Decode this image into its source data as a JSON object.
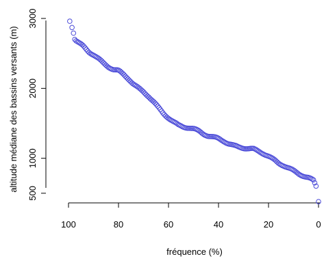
{
  "chart_data": {
    "type": "scatter",
    "title": "",
    "xlabel": "fréquence (%)",
    "ylabel": "altitude médiane des bassins versants (m)",
    "xlim": [
      100,
      0
    ],
    "ylim": [
      450,
      3000
    ],
    "xticks": [
      100,
      80,
      60,
      40,
      20,
      0
    ],
    "yticks": [
      500,
      1000,
      2000,
      3000
    ],
    "grid": false,
    "marker_color": "#4b4bd8",
    "curve": {
      "x": [
        100,
        99,
        98,
        96,
        94,
        92,
        90,
        88,
        86,
        84,
        82,
        80,
        78,
        76,
        74,
        72,
        70,
        68,
        66,
        64,
        62,
        60,
        58,
        56,
        54,
        52,
        50,
        48,
        46,
        44,
        42,
        40,
        38,
        36,
        34,
        32,
        30,
        28,
        26,
        24,
        22,
        20,
        18,
        16,
        14,
        12,
        10,
        8,
        6,
        4,
        2,
        1
      ],
      "y": [
        2960,
        2800,
        2710,
        2650,
        2600,
        2530,
        2480,
        2420,
        2360,
        2310,
        2270,
        2250,
        2200,
        2140,
        2060,
        2000,
        1950,
        1890,
        1810,
        1720,
        1640,
        1580,
        1520,
        1470,
        1450,
        1440,
        1420,
        1390,
        1350,
        1320,
        1300,
        1280,
        1250,
        1210,
        1180,
        1160,
        1150,
        1140,
        1130,
        1100,
        1070,
        1030,
        980,
        930,
        900,
        860,
        820,
        780,
        750,
        720,
        680,
        600
      ]
    },
    "n_points": 186,
    "outliers": [
      {
        "x": 99.5,
        "y": 2960
      },
      {
        "x": 98.6,
        "y": 2870
      },
      {
        "x": 98.0,
        "y": 2790
      },
      {
        "x": 97.5,
        "y": 2700
      },
      {
        "x": 0.0,
        "y": 380
      }
    ]
  }
}
